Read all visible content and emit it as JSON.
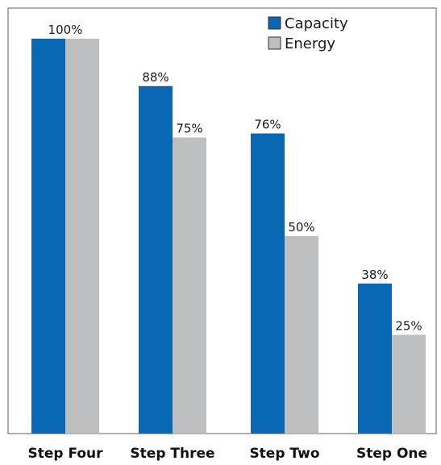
{
  "chart_data": {
    "type": "bar",
    "categories": [
      "Step Four",
      "Step Three",
      "Step Two",
      "Step One"
    ],
    "series": [
      {
        "name": "Capacity",
        "values": [
          100,
          88,
          76,
          38
        ],
        "color": "#0a67b4",
        "labels": [
          "100%",
          "88%",
          "76%",
          "38%"
        ]
      },
      {
        "name": "Energy",
        "values": [
          100,
          75,
          50,
          25
        ],
        "color": "#bcbec0",
        "labels": [
          "",
          "75%",
          "50%",
          "25%"
        ]
      }
    ],
    "ylim": [
      0,
      100
    ],
    "grid": false,
    "legend": "top-right",
    "xlabel": "",
    "ylabel": "",
    "title": ""
  }
}
